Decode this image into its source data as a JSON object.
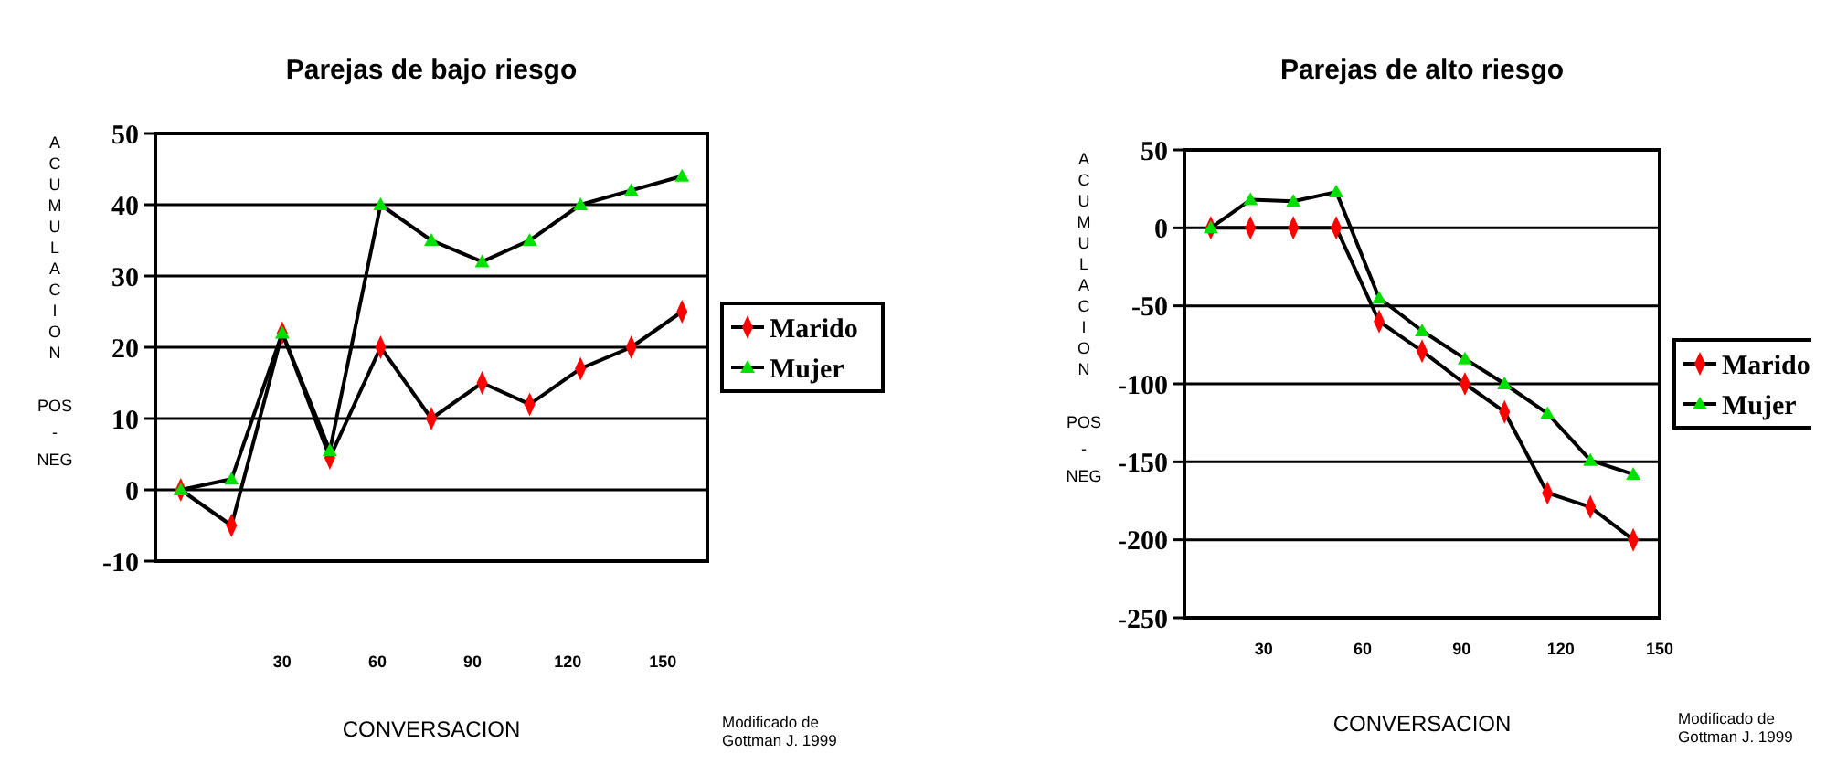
{
  "chart_data": [
    {
      "type": "line",
      "title": "Parejas de bajo riesgo",
      "xlabel": "CONVERSACION",
      "ylabel": "ACUMULACION POS - NEG",
      "x": [
        -2,
        14,
        30,
        45,
        61,
        77,
        93,
        108,
        124,
        140,
        156
      ],
      "xlim": [
        -10,
        164
      ],
      "xticks": [
        30,
        60,
        90,
        120,
        150
      ],
      "ylim": [
        -10,
        50
      ],
      "yticks": [
        -10,
        0,
        10,
        20,
        30,
        40,
        50
      ],
      "grid": "y",
      "legend": "right",
      "annotations": [
        "Modificado de",
        "Gottman J.  1999"
      ],
      "series": [
        {
          "name": "Marido",
          "color": "#ff0000",
          "marker": "diamond",
          "values": [
            0,
            -5,
            22,
            4.5,
            20,
            10,
            15,
            12,
            17,
            20,
            25
          ]
        },
        {
          "name": "Mujer",
          "color": "#00e000",
          "marker": "triangle",
          "values": [
            0,
            1.5,
            22,
            5.5,
            40,
            35,
            32,
            35,
            40,
            42,
            44
          ]
        }
      ]
    },
    {
      "type": "line",
      "title": "Parejas de alto riesgo",
      "xlabel": "CONVERSACION",
      "ylabel": "ACUMULACION POS - NEG",
      "x": [
        14,
        26,
        39,
        52,
        65,
        78,
        91,
        103,
        116,
        129,
        142
      ],
      "xlim": [
        6,
        150
      ],
      "xticks": [
        30,
        60,
        90,
        120,
        150
      ],
      "ylim": [
        -250,
        50
      ],
      "yticks": [
        -250,
        -200,
        -150,
        -100,
        -50,
        0,
        50
      ],
      "grid": "y",
      "legend": "right",
      "annotations": [
        "Modificado de",
        "Gottman J.  1999"
      ],
      "series": [
        {
          "name": "Marido",
          "color": "#ff0000",
          "marker": "diamond",
          "values": [
            0,
            0,
            0,
            0,
            -60,
            -79,
            -100,
            -118,
            -170,
            -179,
            -200
          ]
        },
        {
          "name": "Mujer",
          "color": "#00e000",
          "marker": "triangle",
          "values": [
            0,
            18,
            17,
            23,
            -45,
            -66,
            -84,
            -100,
            -119,
            -149,
            -158
          ]
        }
      ]
    }
  ]
}
